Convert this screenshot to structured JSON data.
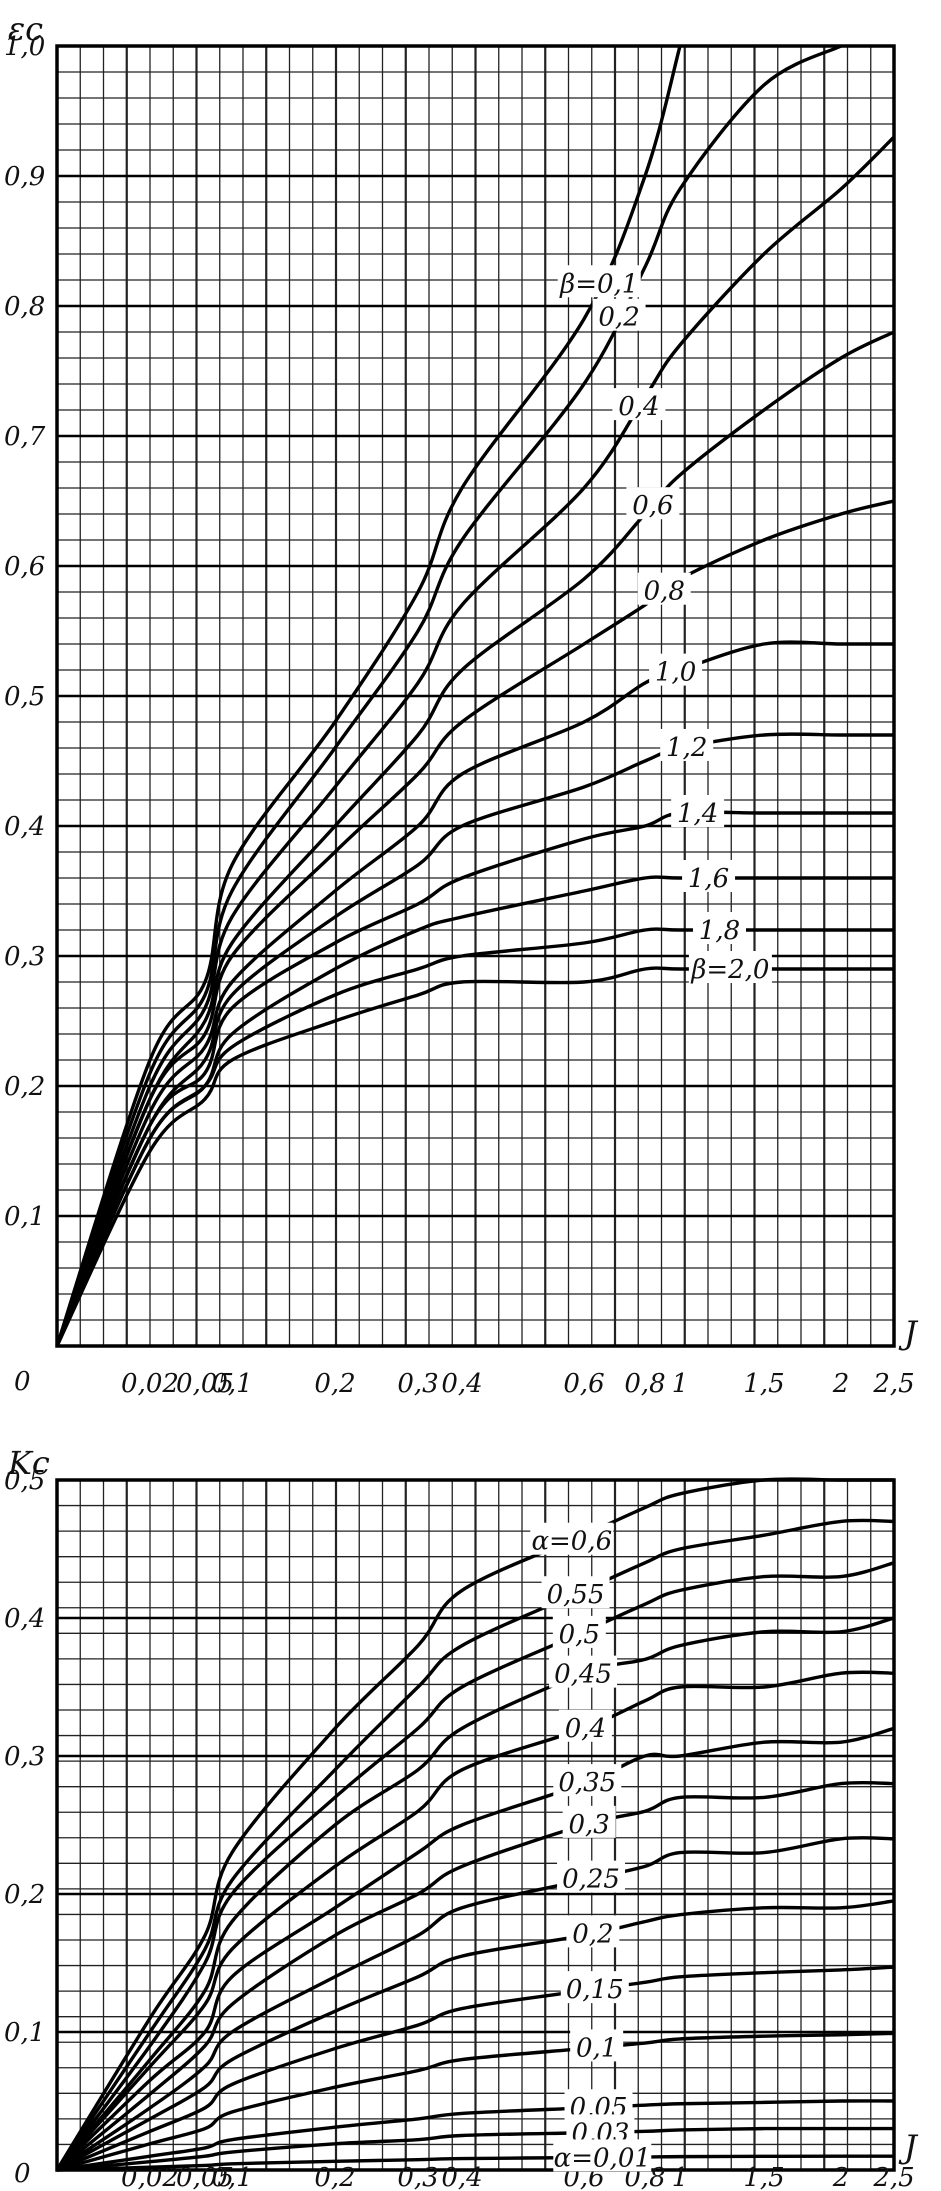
{
  "chart_data": [
    {
      "type": "line",
      "ylabel": "εc",
      "xlabel": "J",
      "ylim": [
        0,
        1.0
      ],
      "xlim": [
        0,
        2.5
      ],
      "x_scale": "nonlinear",
      "grid": true,
      "origin_label": "0",
      "x_ticks": [
        "0,02",
        "0,05",
        "0,1",
        "0,2",
        "0,3",
        "0,4",
        "0,6",
        "0,8",
        "1",
        "1,5",
        "2",
        "2,5"
      ],
      "y_ticks": [
        "0,1",
        "0,2",
        "0,3",
        "0,4",
        "0,5",
        "0,6",
        "0,7",
        "0,8",
        "0,9",
        "1,0"
      ],
      "x": [
        0,
        0.02,
        0.05,
        0.1,
        0.2,
        0.3,
        0.4,
        0.6,
        0.8,
        1,
        1.5,
        2,
        2.5
      ],
      "series": [
        {
          "name": "β=0,1",
          "values": [
            0,
            0.22,
            0.28,
            0.37,
            0.48,
            0.58,
            0.66,
            0.79,
            0.9,
            1.0,
            null,
            null,
            null
          ]
        },
        {
          "name": "0,2",
          "values": [
            0,
            0.21,
            0.27,
            0.35,
            0.46,
            0.55,
            0.62,
            0.74,
            0.83,
            0.89,
            0.97,
            1.0,
            null
          ]
        },
        {
          "name": "0,4",
          "values": [
            0,
            0.2,
            0.26,
            0.33,
            0.43,
            0.51,
            0.57,
            0.66,
            0.73,
            0.77,
            0.84,
            0.89,
            0.93
          ]
        },
        {
          "name": "0,6",
          "values": [
            0,
            0.19,
            0.25,
            0.31,
            0.4,
            0.47,
            0.52,
            0.59,
            0.64,
            0.67,
            0.72,
            0.76,
            0.78
          ]
        },
        {
          "name": "0,8",
          "values": [
            0,
            0.19,
            0.24,
            0.3,
            0.38,
            0.44,
            0.48,
            0.54,
            0.57,
            0.59,
            0.62,
            0.64,
            0.65
          ]
        },
        {
          "name": "1,0",
          "values": [
            0,
            0.18,
            0.23,
            0.28,
            0.35,
            0.4,
            0.44,
            0.48,
            0.51,
            0.52,
            0.54,
            0.54,
            0.54
          ]
        },
        {
          "name": "1,2",
          "values": [
            0,
            0.17,
            0.22,
            0.27,
            0.33,
            0.37,
            0.4,
            0.43,
            0.45,
            0.46,
            0.47,
            0.47,
            0.47
          ]
        },
        {
          "name": "1,4",
          "values": [
            0,
            0.17,
            0.21,
            0.26,
            0.31,
            0.34,
            0.36,
            0.39,
            0.4,
            0.41,
            0.41,
            0.41,
            0.41
          ]
        },
        {
          "name": "1,6",
          "values": [
            0,
            0.16,
            0.2,
            0.24,
            0.29,
            0.32,
            0.33,
            0.35,
            0.36,
            0.36,
            0.36,
            0.36,
            0.36
          ]
        },
        {
          "name": "1,8",
          "values": [
            0,
            0.16,
            0.2,
            0.23,
            0.27,
            0.29,
            0.3,
            0.31,
            0.32,
            0.32,
            0.32,
            0.32,
            0.32
          ]
        },
        {
          "name": "β=2,0",
          "values": [
            0,
            0.15,
            0.19,
            0.22,
            0.25,
            0.27,
            0.28,
            0.28,
            0.29,
            0.29,
            0.29,
            0.29,
            0.29
          ]
        }
      ]
    },
    {
      "type": "line",
      "ylabel": "Kc",
      "xlabel": "J",
      "ylim": [
        0,
        0.5
      ],
      "xlim": [
        0,
        2.5
      ],
      "x_scale": "nonlinear",
      "grid": true,
      "origin_label": "0",
      "x_ticks": [
        "0,02",
        "0,05",
        "0,1",
        "0,2",
        "0,3",
        "0,4",
        "0,6",
        "0,8",
        "1",
        "1,5",
        "2",
        "2,5"
      ],
      "y_ticks": [
        "0,1",
        "0,2",
        "0,3",
        "0,4",
        "0,5"
      ],
      "x": [
        0,
        0.02,
        0.05,
        0.1,
        0.2,
        0.3,
        0.4,
        0.6,
        0.8,
        1,
        1.5,
        2,
        2.5
      ],
      "series": [
        {
          "name": "α=0,6",
          "values": [
            0,
            0.11,
            0.17,
            0.23,
            0.32,
            0.38,
            0.42,
            0.46,
            0.48,
            0.49,
            0.5,
            0.5,
            0.5
          ]
        },
        {
          "name": "0,55",
          "values": [
            0,
            0.1,
            0.16,
            0.21,
            0.29,
            0.35,
            0.38,
            0.42,
            0.44,
            0.45,
            0.46,
            0.47,
            0.47
          ]
        },
        {
          "name": "0,5",
          "values": [
            0,
            0.09,
            0.15,
            0.2,
            0.27,
            0.32,
            0.35,
            0.39,
            0.41,
            0.42,
            0.43,
            0.43,
            0.44
          ]
        },
        {
          "name": "0,45",
          "values": [
            0,
            0.08,
            0.13,
            0.18,
            0.25,
            0.29,
            0.32,
            0.36,
            0.37,
            0.38,
            0.39,
            0.39,
            0.4
          ]
        },
        {
          "name": "0,4",
          "values": [
            0,
            0.075,
            0.12,
            0.16,
            0.22,
            0.26,
            0.29,
            0.32,
            0.34,
            0.35,
            0.35,
            0.36,
            0.36
          ]
        },
        {
          "name": "0,35",
          "values": [
            0,
            0.065,
            0.1,
            0.14,
            0.19,
            0.23,
            0.25,
            0.28,
            0.3,
            0.3,
            0.31,
            0.31,
            0.32
          ]
        },
        {
          "name": "0,3",
          "values": [
            0,
            0.055,
            0.09,
            0.12,
            0.17,
            0.2,
            0.22,
            0.25,
            0.26,
            0.27,
            0.27,
            0.28,
            0.28
          ]
        },
        {
          "name": "0,25",
          "values": [
            0,
            0.045,
            0.075,
            0.1,
            0.14,
            0.17,
            0.19,
            0.21,
            0.22,
            0.23,
            0.23,
            0.24,
            0.24
          ]
        },
        {
          "name": "0,2",
          "values": [
            0,
            0.037,
            0.06,
            0.08,
            0.115,
            0.14,
            0.155,
            0.17,
            0.18,
            0.185,
            0.19,
            0.19,
            0.195
          ]
        },
        {
          "name": "0,15",
          "values": [
            0,
            0.028,
            0.045,
            0.062,
            0.088,
            0.105,
            0.117,
            0.13,
            0.136,
            0.14,
            0.143,
            0.145,
            0.147
          ]
        },
        {
          "name": "0,1",
          "values": [
            0,
            0.019,
            0.03,
            0.042,
            0.06,
            0.072,
            0.08,
            0.088,
            0.092,
            0.095,
            0.097,
            0.098,
            0.099
          ]
        },
        {
          "name": "0,05",
          "values": [
            0,
            0.01,
            0.016,
            0.022,
            0.031,
            0.037,
            0.041,
            0.045,
            0.047,
            0.048,
            0.049,
            0.05,
            0.05
          ]
        },
        {
          "name": "0,03",
          "values": [
            0,
            0.006,
            0.01,
            0.013,
            0.019,
            0.022,
            0.025,
            0.027,
            0.028,
            0.029,
            0.03,
            0.03,
            0.03
          ]
        },
        {
          "name": "α=0,01",
          "values": [
            0,
            0.002,
            0.0033,
            0.0045,
            0.0063,
            0.0075,
            0.0083,
            0.009,
            0.0094,
            0.0097,
            0.0099,
            0.01,
            0.01
          ]
        }
      ]
    }
  ]
}
